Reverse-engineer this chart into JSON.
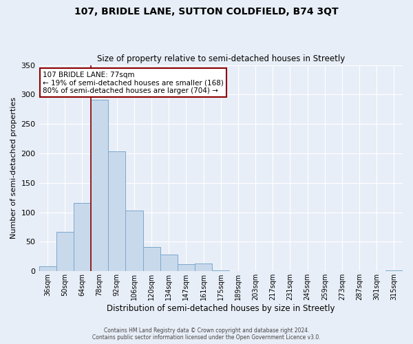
{
  "title": "107, BRIDLE LANE, SUTTON COLDFIELD, B74 3QT",
  "subtitle": "Size of property relative to semi-detached houses in Streetly",
  "xlabel": "Distribution of semi-detached houses by size in Streetly",
  "ylabel": "Number of semi-detached properties",
  "footer_line1": "Contains HM Land Registry data © Crown copyright and database right 2024.",
  "footer_line2": "Contains public sector information licensed under the Open Government Licence v3.0.",
  "bin_labels": [
    "36sqm",
    "50sqm",
    "64sqm",
    "78sqm",
    "92sqm",
    "106sqm",
    "120sqm",
    "134sqm",
    "147sqm",
    "161sqm",
    "175sqm",
    "189sqm",
    "203sqm",
    "217sqm",
    "231sqm",
    "245sqm",
    "259sqm",
    "273sqm",
    "287sqm",
    "301sqm",
    "315sqm"
  ],
  "bar_heights": [
    8,
    67,
    116,
    291,
    203,
    103,
    41,
    28,
    12,
    13,
    1,
    0,
    0,
    0,
    0,
    0,
    0,
    0,
    0,
    0,
    1
  ],
  "bar_color": "#c9d9ec",
  "bar_edge_color": "#7aa8cc",
  "vline_color": "#8b0000",
  "vline_x_index": 3.0,
  "annotation_title": "107 BRIDLE LANE: 77sqm",
  "annotation_line1": "← 19% of semi-detached houses are smaller (168)",
  "annotation_line2": "80% of semi-detached houses are larger (704) →",
  "annotation_box_color": "#8b0000",
  "ylim": [
    0,
    350
  ],
  "yticks": [
    0,
    50,
    100,
    150,
    200,
    250,
    300,
    350
  ],
  "background_color": "#e8eef7",
  "plot_bg_color": "#e8eef7",
  "grid_color": "#ffffff"
}
